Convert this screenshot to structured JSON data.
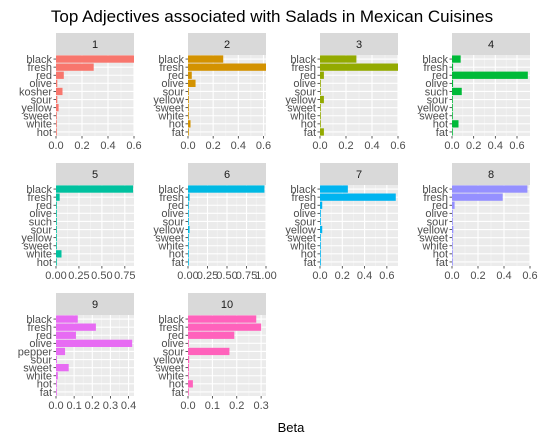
{
  "chart_data": {
    "type": "bar",
    "orientation": "horizontal",
    "title": "Top Adjectives associated with Salads in Mexican Cuisines",
    "xlabel": "Beta",
    "ylabel": "",
    "grid": true,
    "legend": "none",
    "panel_background": "#ebebeb",
    "strip_background": "#d9d9d9",
    "panels": [
      {
        "label": "1",
        "color": "#F8766D",
        "xlim": [
          0,
          0.6
        ],
        "xticks": [
          "0.0",
          "0.2",
          "0.4",
          "0.6"
        ],
        "categories": [
          "black",
          "fresh",
          "red",
          "olive",
          "kosher",
          "sour",
          "yellow",
          "sweet",
          "white",
          "hot"
        ],
        "values": [
          0.6,
          0.29,
          0.06,
          0.01,
          0.05,
          0.01,
          0.02,
          0.005,
          0.003,
          0.002
        ]
      },
      {
        "label": "2",
        "color": "#D39200",
        "xlim": [
          0,
          0.62
        ],
        "xticks": [
          "0.0",
          "0.2",
          "0.4",
          "0.6"
        ],
        "categories": [
          "black",
          "fresh",
          "red",
          "olive",
          "sour",
          "yellow",
          "sweet",
          "white",
          "hot",
          "fat"
        ],
        "values": [
          0.28,
          0.62,
          0.03,
          0.06,
          0.002,
          0.003,
          0.002,
          0.005,
          0.02,
          0.005
        ]
      },
      {
        "label": "3",
        "color": "#93AA00",
        "xlim": [
          0,
          0.6
        ],
        "xticks": [
          "0.0",
          "0.2",
          "0.4",
          "0.6"
        ],
        "categories": [
          "black",
          "fresh",
          "red",
          "olive",
          "sour",
          "yellow",
          "sweet",
          "white",
          "hot",
          "fat"
        ],
        "values": [
          0.28,
          0.6,
          0.03,
          0.005,
          0.002,
          0.03,
          0.004,
          0.003,
          0.005,
          0.03
        ]
      },
      {
        "label": "4",
        "color": "#00BA38",
        "xlim": [
          0,
          0.72
        ],
        "xticks": [
          "0.0",
          "0.2",
          "0.4",
          "0.6"
        ],
        "categories": [
          "black",
          "fresh",
          "red",
          "olive",
          "such",
          "sour",
          "yellow",
          "sweet",
          "hot",
          "fat"
        ],
        "values": [
          0.08,
          0.01,
          0.7,
          0.01,
          0.09,
          0.005,
          0.003,
          0.002,
          0.06,
          0.002
        ]
      },
      {
        "label": "5",
        "color": "#00C19F",
        "xlim": [
          0,
          0.85
        ],
        "xticks": [
          "0.00",
          "0.25",
          "0.50",
          "0.75"
        ],
        "categories": [
          "black",
          "fresh",
          "red",
          "olive",
          "such",
          "sour",
          "yellow",
          "sweet",
          "white",
          "hot"
        ],
        "values": [
          0.84,
          0.04,
          0.005,
          0.005,
          0.003,
          0.002,
          0.002,
          0.003,
          0.06,
          0.003
        ]
      },
      {
        "label": "6",
        "color": "#00B9E3",
        "xlim": [
          0,
          1.0
        ],
        "xticks": [
          "0.00",
          "0.25",
          "0.50",
          "0.75",
          "1.00"
        ],
        "categories": [
          "black",
          "fresh",
          "red",
          "olive",
          "sour",
          "yellow",
          "sweet",
          "white",
          "hot",
          "fat"
        ],
        "values": [
          0.98,
          0.02,
          0.005,
          0.003,
          0.005,
          0.02,
          0.003,
          0.002,
          0.002,
          0.002
        ]
      },
      {
        "label": "7",
        "color": "#00B4F0",
        "xlim": [
          0,
          0.7
        ],
        "xticks": [
          "0.0",
          "0.2",
          "0.4",
          "0.6"
        ],
        "categories": [
          "black",
          "fresh",
          "red",
          "olive",
          "sour",
          "yellow",
          "sweet",
          "white",
          "hot",
          "fat"
        ],
        "values": [
          0.25,
          0.68,
          0.02,
          0.003,
          0.002,
          0.02,
          0.003,
          0.002,
          0.002,
          0.002
        ]
      },
      {
        "label": "8",
        "color": "#9590FF",
        "xlim": [
          0,
          0.6
        ],
        "xticks": [
          "0.0",
          "0.2",
          "0.4",
          "0.6"
        ],
        "categories": [
          "black",
          "fresh",
          "red",
          "olive",
          "sour",
          "yellow",
          "sweet",
          "white",
          "hot",
          "fat"
        ],
        "values": [
          0.58,
          0.39,
          0.02,
          0.003,
          0.002,
          0.01,
          0.003,
          0.002,
          0.002,
          0.002
        ]
      },
      {
        "label": "9",
        "color": "#E76BF3",
        "xlim": [
          0,
          0.43
        ],
        "xticks": [
          "0.0",
          "0.1",
          "0.2",
          "0.3",
          "0.4"
        ],
        "categories": [
          "black",
          "fresh",
          "red",
          "olive",
          "pepper",
          "sour",
          "sweet",
          "white",
          "hot",
          "fat"
        ],
        "values": [
          0.12,
          0.22,
          0.11,
          0.42,
          0.05,
          0.005,
          0.07,
          0.01,
          0.003,
          0.002
        ]
      },
      {
        "label": "10",
        "color": "#FF62BC",
        "xlim": [
          0,
          0.32
        ],
        "xticks": [
          "0.0",
          "0.1",
          "0.2",
          "0.3"
        ],
        "categories": [
          "black",
          "fresh",
          "red",
          "olive",
          "sour",
          "yellow",
          "sweet",
          "white",
          "hot",
          "fat"
        ],
        "values": [
          0.28,
          0.3,
          0.19,
          0.003,
          0.17,
          0.005,
          0.004,
          0.003,
          0.02,
          0.002
        ]
      }
    ]
  }
}
